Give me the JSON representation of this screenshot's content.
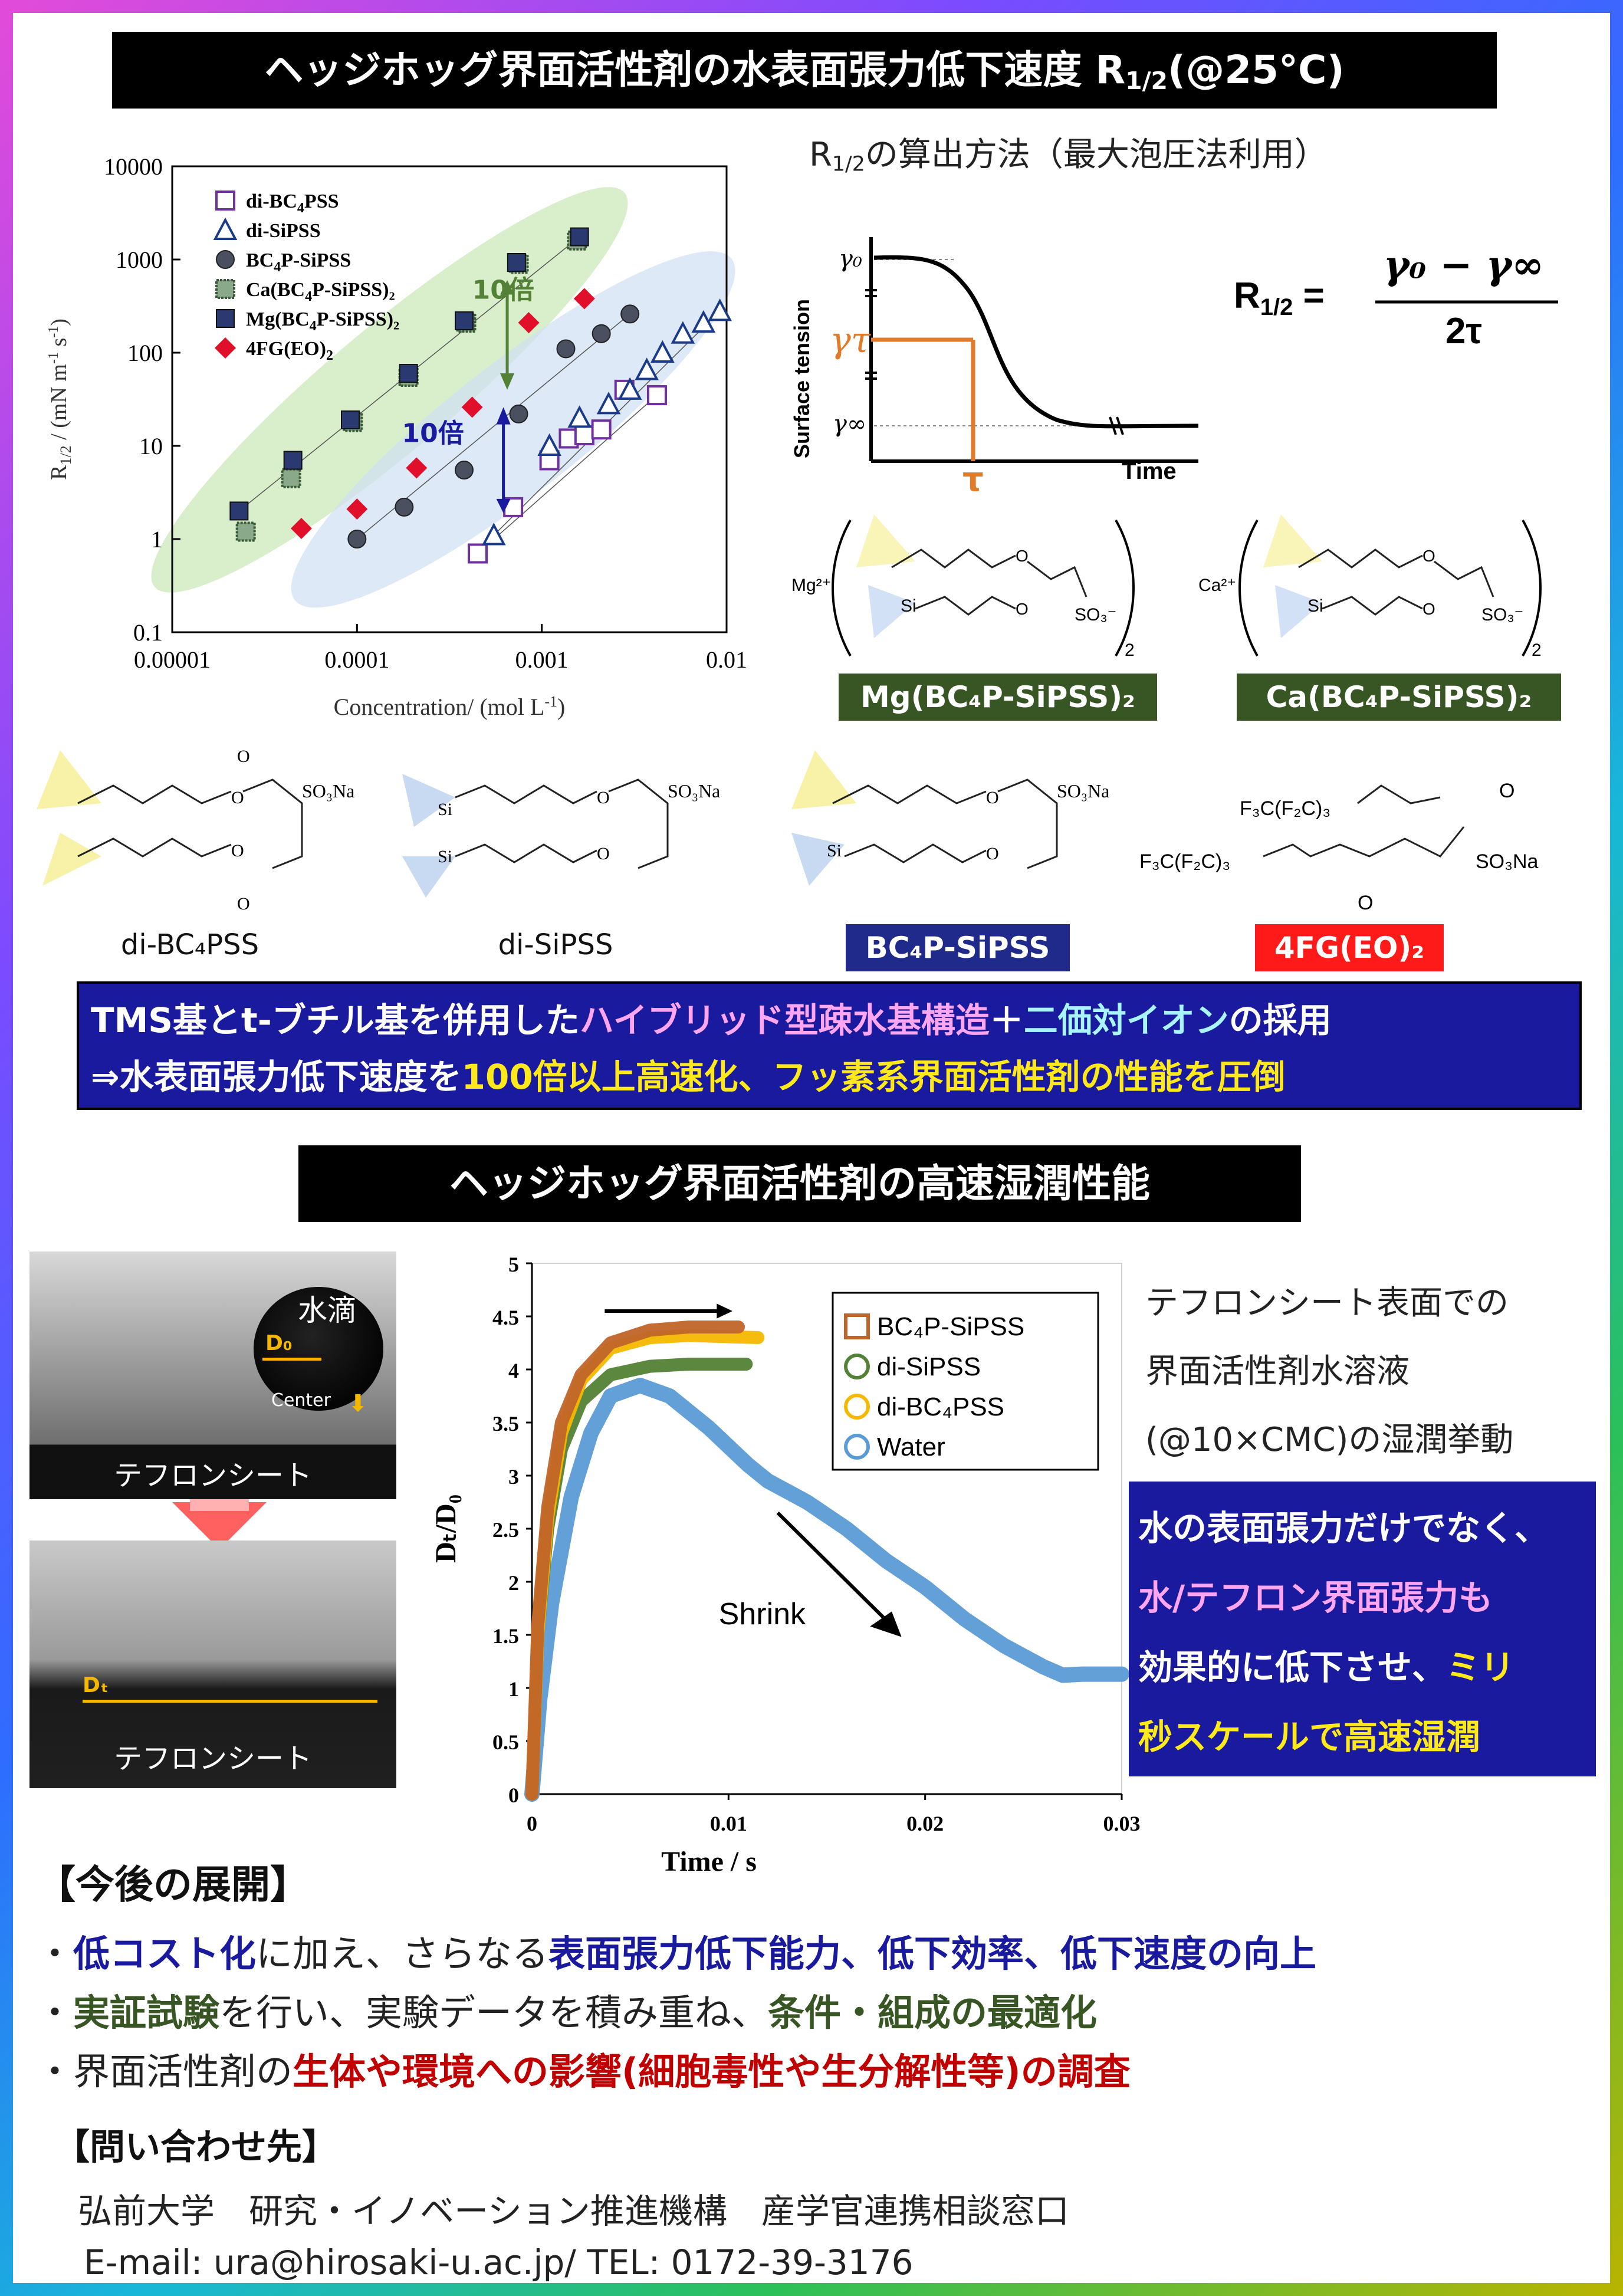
{
  "header1": {
    "text": "ヘッジホッグ界面活性剤の水表面張力低下速度 R",
    "sub": "1/2",
    "tail": "(@25°C)"
  },
  "chart1": {
    "ylabel_prefix": "R",
    "ylabel_sub": "1/2",
    "ylabel_tail": " / (mN m",
    "ylabel_sup1": "-1",
    "ylabel_mid": " s",
    "ylabel_sup2": "-1",
    "ylabel_end": ")",
    "xlabel": "Concentration/ (mol L",
    "xlabel_sup": "-1",
    "xlabel_end": ")",
    "yticks": [
      "10000",
      "1000",
      "100",
      "10",
      "1",
      "0.1"
    ],
    "xticks": [
      "0.00001",
      "0.0001",
      "0.001",
      "0.01"
    ],
    "legend": [
      {
        "pre": "di-BC",
        "sub": "4",
        "post": "PSS"
      },
      {
        "pre": "di-SiPSS",
        "sub": "",
        "post": ""
      },
      {
        "pre": "BC",
        "sub": "4",
        "post": "P-SiPSS"
      },
      {
        "pre": "Ca(BC",
        "sub": "4",
        "post": "P-SiPSS)₂"
      },
      {
        "pre": "Mg(BC",
        "sub": "4",
        "post": "P-SiPSS)₂"
      },
      {
        "pre": "4FG(EO)",
        "sub": "2",
        "post": ""
      }
    ],
    "annot_green": "10倍",
    "annot_blue": "10倍"
  },
  "chart1_data": {
    "type": "scatter",
    "xscale": "log",
    "yscale": "log",
    "xlim": [
      1e-05,
      0.01
    ],
    "ylim": [
      0.1,
      10000
    ],
    "series": [
      {
        "name": "di-BC4PSS",
        "points": [
          [
            0.00045,
            0.7
          ],
          [
            0.0007,
            2.2
          ],
          [
            0.0011,
            7
          ],
          [
            0.0014,
            12
          ],
          [
            0.0017,
            13
          ],
          [
            0.0021,
            15
          ],
          [
            0.0028,
            40
          ],
          [
            0.0042,
            35
          ]
        ]
      },
      {
        "name": "di-SiPSS",
        "points": [
          [
            0.00055,
            1.1
          ],
          [
            0.0011,
            10
          ],
          [
            0.0016,
            20
          ],
          [
            0.0023,
            28
          ],
          [
            0.003,
            40
          ],
          [
            0.0037,
            65
          ],
          [
            0.0045,
            100
          ],
          [
            0.0058,
            160
          ],
          [
            0.0075,
            210
          ],
          [
            0.0092,
            280
          ]
        ]
      },
      {
        "name": "BC4P-SiPSS",
        "points": [
          [
            0.0001,
            1.0
          ],
          [
            0.00018,
            2.2
          ],
          [
            0.00038,
            5.5
          ],
          [
            0.00075,
            22
          ],
          [
            0.00135,
            110
          ],
          [
            0.0021,
            160
          ],
          [
            0.003,
            260
          ]
        ]
      },
      {
        "name": "Ca(BC4P-SiPSS)2",
        "points": [
          [
            2.5e-05,
            1.2
          ],
          [
            4.4e-05,
            4.5
          ],
          [
            9.5e-05,
            18
          ],
          [
            0.00019,
            55
          ],
          [
            0.00039,
            210
          ],
          [
            0.00075,
            900
          ],
          [
            0.00155,
            1600
          ]
        ]
      },
      {
        "name": "Mg(BC4P-SiPSS)2",
        "points": [
          [
            2.3e-05,
            2.0
          ],
          [
            4.5e-05,
            7.0
          ],
          [
            9.2e-05,
            19
          ],
          [
            0.00019,
            60
          ],
          [
            0.00038,
            220
          ],
          [
            0.00073,
            930
          ],
          [
            0.0016,
            1750
          ]
        ]
      },
      {
        "name": "4FG(EO)2",
        "points": [
          [
            5e-05,
            1.3
          ],
          [
            0.0001,
            2.1
          ],
          [
            0.00021,
            5.8
          ],
          [
            0.00042,
            26
          ],
          [
            0.00085,
            210
          ],
          [
            0.0017,
            380
          ]
        ]
      }
    ]
  },
  "method": {
    "title_pre": "R",
    "title_sub": "1/2",
    "title_post": "の算出方法（最大泡圧法利用）",
    "ylabel": "Surface tension",
    "xlabel": "Time",
    "g0": "γ₀",
    "gt": "γτ",
    "ginf": "γ∞",
    "tau": "τ",
    "formula_lhs": "R",
    "formula_sub": "1/2",
    "formula_eq": " =",
    "numerator": "γ₀ − γ∞",
    "denominator": "2τ"
  },
  "molecules": {
    "mg_label": "Mg(BC₄P-SiPSS)₂",
    "ca_label": "Ca(BC₄P-SiPSS)₂",
    "dibc_label": "di-BC₄PSS",
    "disi_label": "di-SiPSS",
    "bcsi_label": "BC₄P-SiPSS",
    "fg_label": "4FG(EO)₂",
    "mg_ion": "Mg²⁺",
    "ca_ion": "Ca²⁺",
    "so3": "SO₃⁻",
    "so3na": "SO₃Na",
    "si": "Si",
    "o": "O",
    "f3c": "F₃C(F₂C)₃",
    "sub2": "2"
  },
  "summary": {
    "line1_a": "TMS基とt-ブチル基を併用した",
    "line1_b": "ハイブリッド型疎水基構造",
    "line1_c": "＋",
    "line1_d": "二価対イオン",
    "line1_e": "の採用",
    "line2_a": "⇒水表面張力低下速度を",
    "line2_b": "100倍以上高速化、フッ素系界面活性剤の性能を圧倒"
  },
  "header2": {
    "text": "ヘッジホッグ界面活性剤の高速湿潤性能"
  },
  "photos": {
    "droplet": "水滴",
    "d0": "D₀",
    "center": "Center",
    "sheet1": "テフロンシート",
    "dt": "Dₜ",
    "sheet2": "テフロンシート"
  },
  "chart2": {
    "ylabel": "Dₜ/D₀",
    "xlabel": "Time / s",
    "yticks": [
      "5",
      "4.5",
      "4",
      "3.5",
      "3",
      "2.5",
      "2",
      "1.5",
      "1",
      "0.5",
      "0"
    ],
    "xticks": [
      "0",
      "0.01",
      "0.02",
      "0.03"
    ],
    "legend": [
      "BC₄P-SiPSS",
      "di-SiPSS",
      "di-BC₄PSS",
      "Water"
    ],
    "shrink": "Shrink",
    "colors": {
      "BC4P-SiPSS": "#c0652a",
      "di-SiPSS": "#538135",
      "di-BC4PSS": "#f5b800",
      "Water": "#5b9bd5"
    }
  },
  "chart2_data": {
    "type": "line",
    "xlim": [
      0,
      0.03
    ],
    "ylim": [
      0,
      5
    ],
    "series": [
      {
        "name": "BC4P-SiPSS",
        "x": [
          0,
          0.0003,
          0.0008,
          0.0015,
          0.0025,
          0.004,
          0.006,
          0.008,
          0.0105
        ],
        "y": [
          0,
          1.6,
          2.7,
          3.5,
          3.95,
          4.25,
          4.37,
          4.4,
          4.4
        ]
      },
      {
        "name": "di-SiPSS",
        "x": [
          0,
          0.0003,
          0.0008,
          0.0015,
          0.0025,
          0.004,
          0.006,
          0.008,
          0.0109
        ],
        "y": [
          0,
          1.5,
          2.5,
          3.25,
          3.7,
          3.95,
          4.03,
          4.05,
          4.05
        ]
      },
      {
        "name": "di-BC4PSS",
        "x": [
          0,
          0.0003,
          0.0008,
          0.0015,
          0.0025,
          0.004,
          0.006,
          0.008,
          0.0115
        ],
        "y": [
          0,
          1.5,
          2.6,
          3.4,
          3.9,
          4.2,
          4.3,
          4.32,
          4.3
        ]
      },
      {
        "name": "Water",
        "x": [
          0,
          0.0004,
          0.001,
          0.002,
          0.003,
          0.004,
          0.0055,
          0.007,
          0.009,
          0.011,
          0.012,
          0.014,
          0.016,
          0.018,
          0.02,
          0.022,
          0.024,
          0.026,
          0.027,
          0.028,
          0.03
        ],
        "y": [
          0,
          0.9,
          1.8,
          2.8,
          3.4,
          3.75,
          3.85,
          3.75,
          3.45,
          3.1,
          2.95,
          2.75,
          2.5,
          2.2,
          1.95,
          1.65,
          1.4,
          1.2,
          1.12,
          1.13,
          1.13
        ]
      }
    ]
  },
  "wet_text": {
    "l1": "テフロンシート表面での",
    "l2": "界面活性剤水溶液",
    "l3": "(@10×CMC)の湿潤挙動"
  },
  "wet_box": {
    "a": "水の表面張力だけでなく、",
    "b": "水/テフロン界面張力も",
    "c": "効果的に低下させ、",
    "d": "ミリ",
    "e": "秒スケールで高速湿潤"
  },
  "future": {
    "title": "【今後の展開】",
    "b1": [
      "・",
      "低コスト化",
      "に加え、さらなる",
      "表面張力低下能力、低下効率、低下速度の向上"
    ],
    "b2": [
      "・",
      "実証試験",
      "を行い、実験データを積み重ね、",
      "条件・組成の最適化"
    ],
    "b3": [
      "・界面活性剤の",
      "生体や環境への影響(細胞毒性や生分解性等)の調査"
    ]
  },
  "contact": {
    "title": "【問い合わせ先】",
    "org": "弘前大学　研究・イノベーション推進機構　産学官連携相談窓口",
    "email": "E-mail: ura@hirosaki-u.ac.jp/ TEL: 0172-39-3176"
  }
}
